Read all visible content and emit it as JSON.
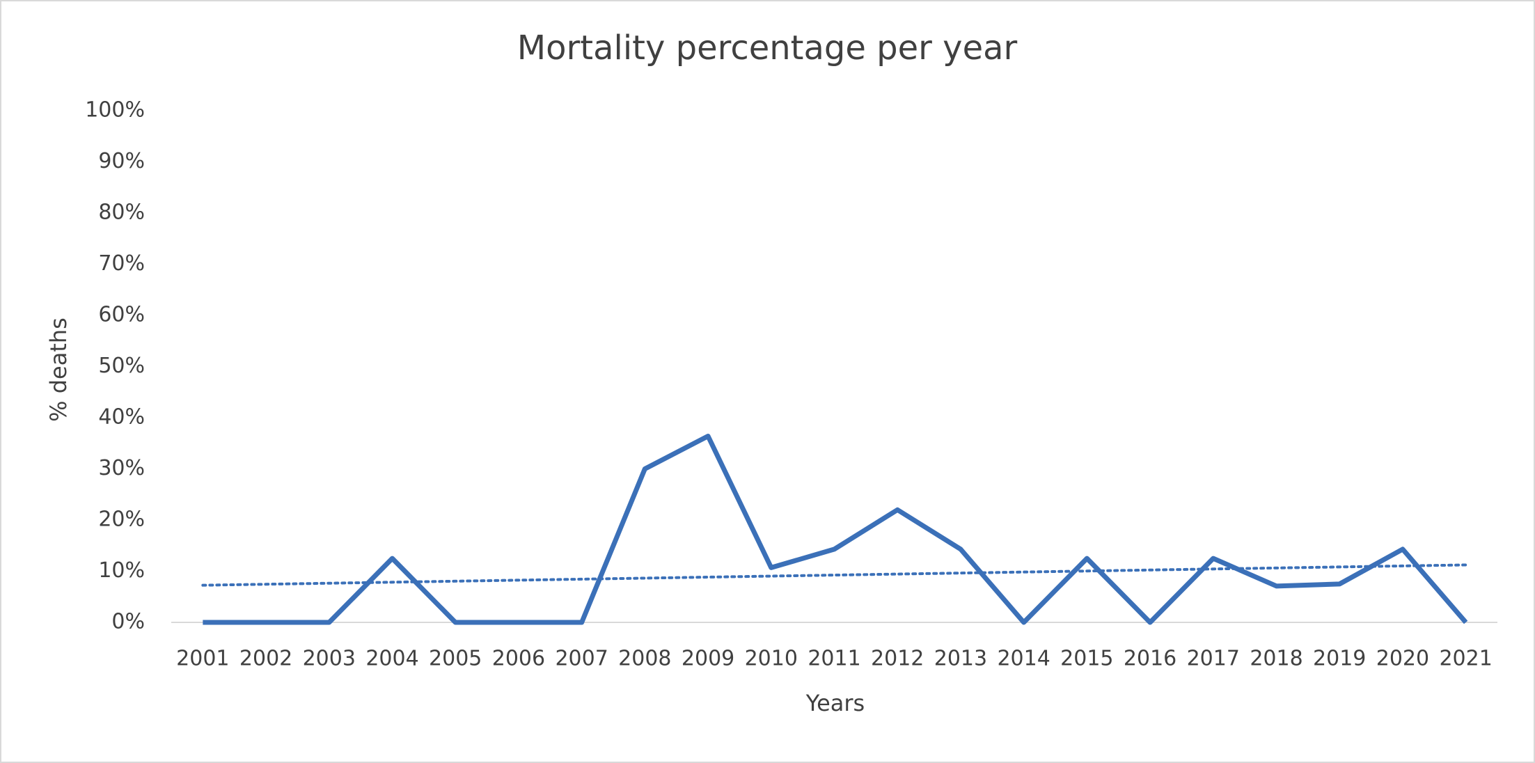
{
  "chart_data": {
    "type": "line",
    "title": "Mortality percentage per year",
    "x_label": "Years",
    "y_label": "% deaths",
    "categories": [
      "2001",
      "2002",
      "2003",
      "2004",
      "2005",
      "2006",
      "2007",
      "2008",
      "2009",
      "2010",
      "2011",
      "2012",
      "2013",
      "2014",
      "2015",
      "2016",
      "2017",
      "2018",
      "2019",
      "2020",
      "2021"
    ],
    "series": [
      {
        "name": "% deaths",
        "color": "#3b70b8",
        "values": [
          0,
          0,
          0,
          12.5,
          0,
          0,
          0,
          30,
          36.4,
          10.7,
          14.3,
          22,
          14.3,
          0,
          12.5,
          0,
          12.5,
          7.1,
          7.5,
          14.3,
          0
        ]
      }
    ],
    "trendline": "linear",
    "ylim": [
      0,
      100
    ],
    "yticks": [
      {
        "value": 0,
        "label": "0%"
      },
      {
        "value": 10,
        "label": "10%"
      },
      {
        "value": 20,
        "label": "20%"
      },
      {
        "value": 30,
        "label": "30%"
      },
      {
        "value": 40,
        "label": "40%"
      },
      {
        "value": 50,
        "label": "50%"
      },
      {
        "value": 60,
        "label": "60%"
      },
      {
        "value": 70,
        "label": "70%"
      },
      {
        "value": 80,
        "label": "80%"
      },
      {
        "value": 90,
        "label": "90%"
      },
      {
        "value": 100,
        "label": "100%"
      }
    ],
    "grid": false
  }
}
